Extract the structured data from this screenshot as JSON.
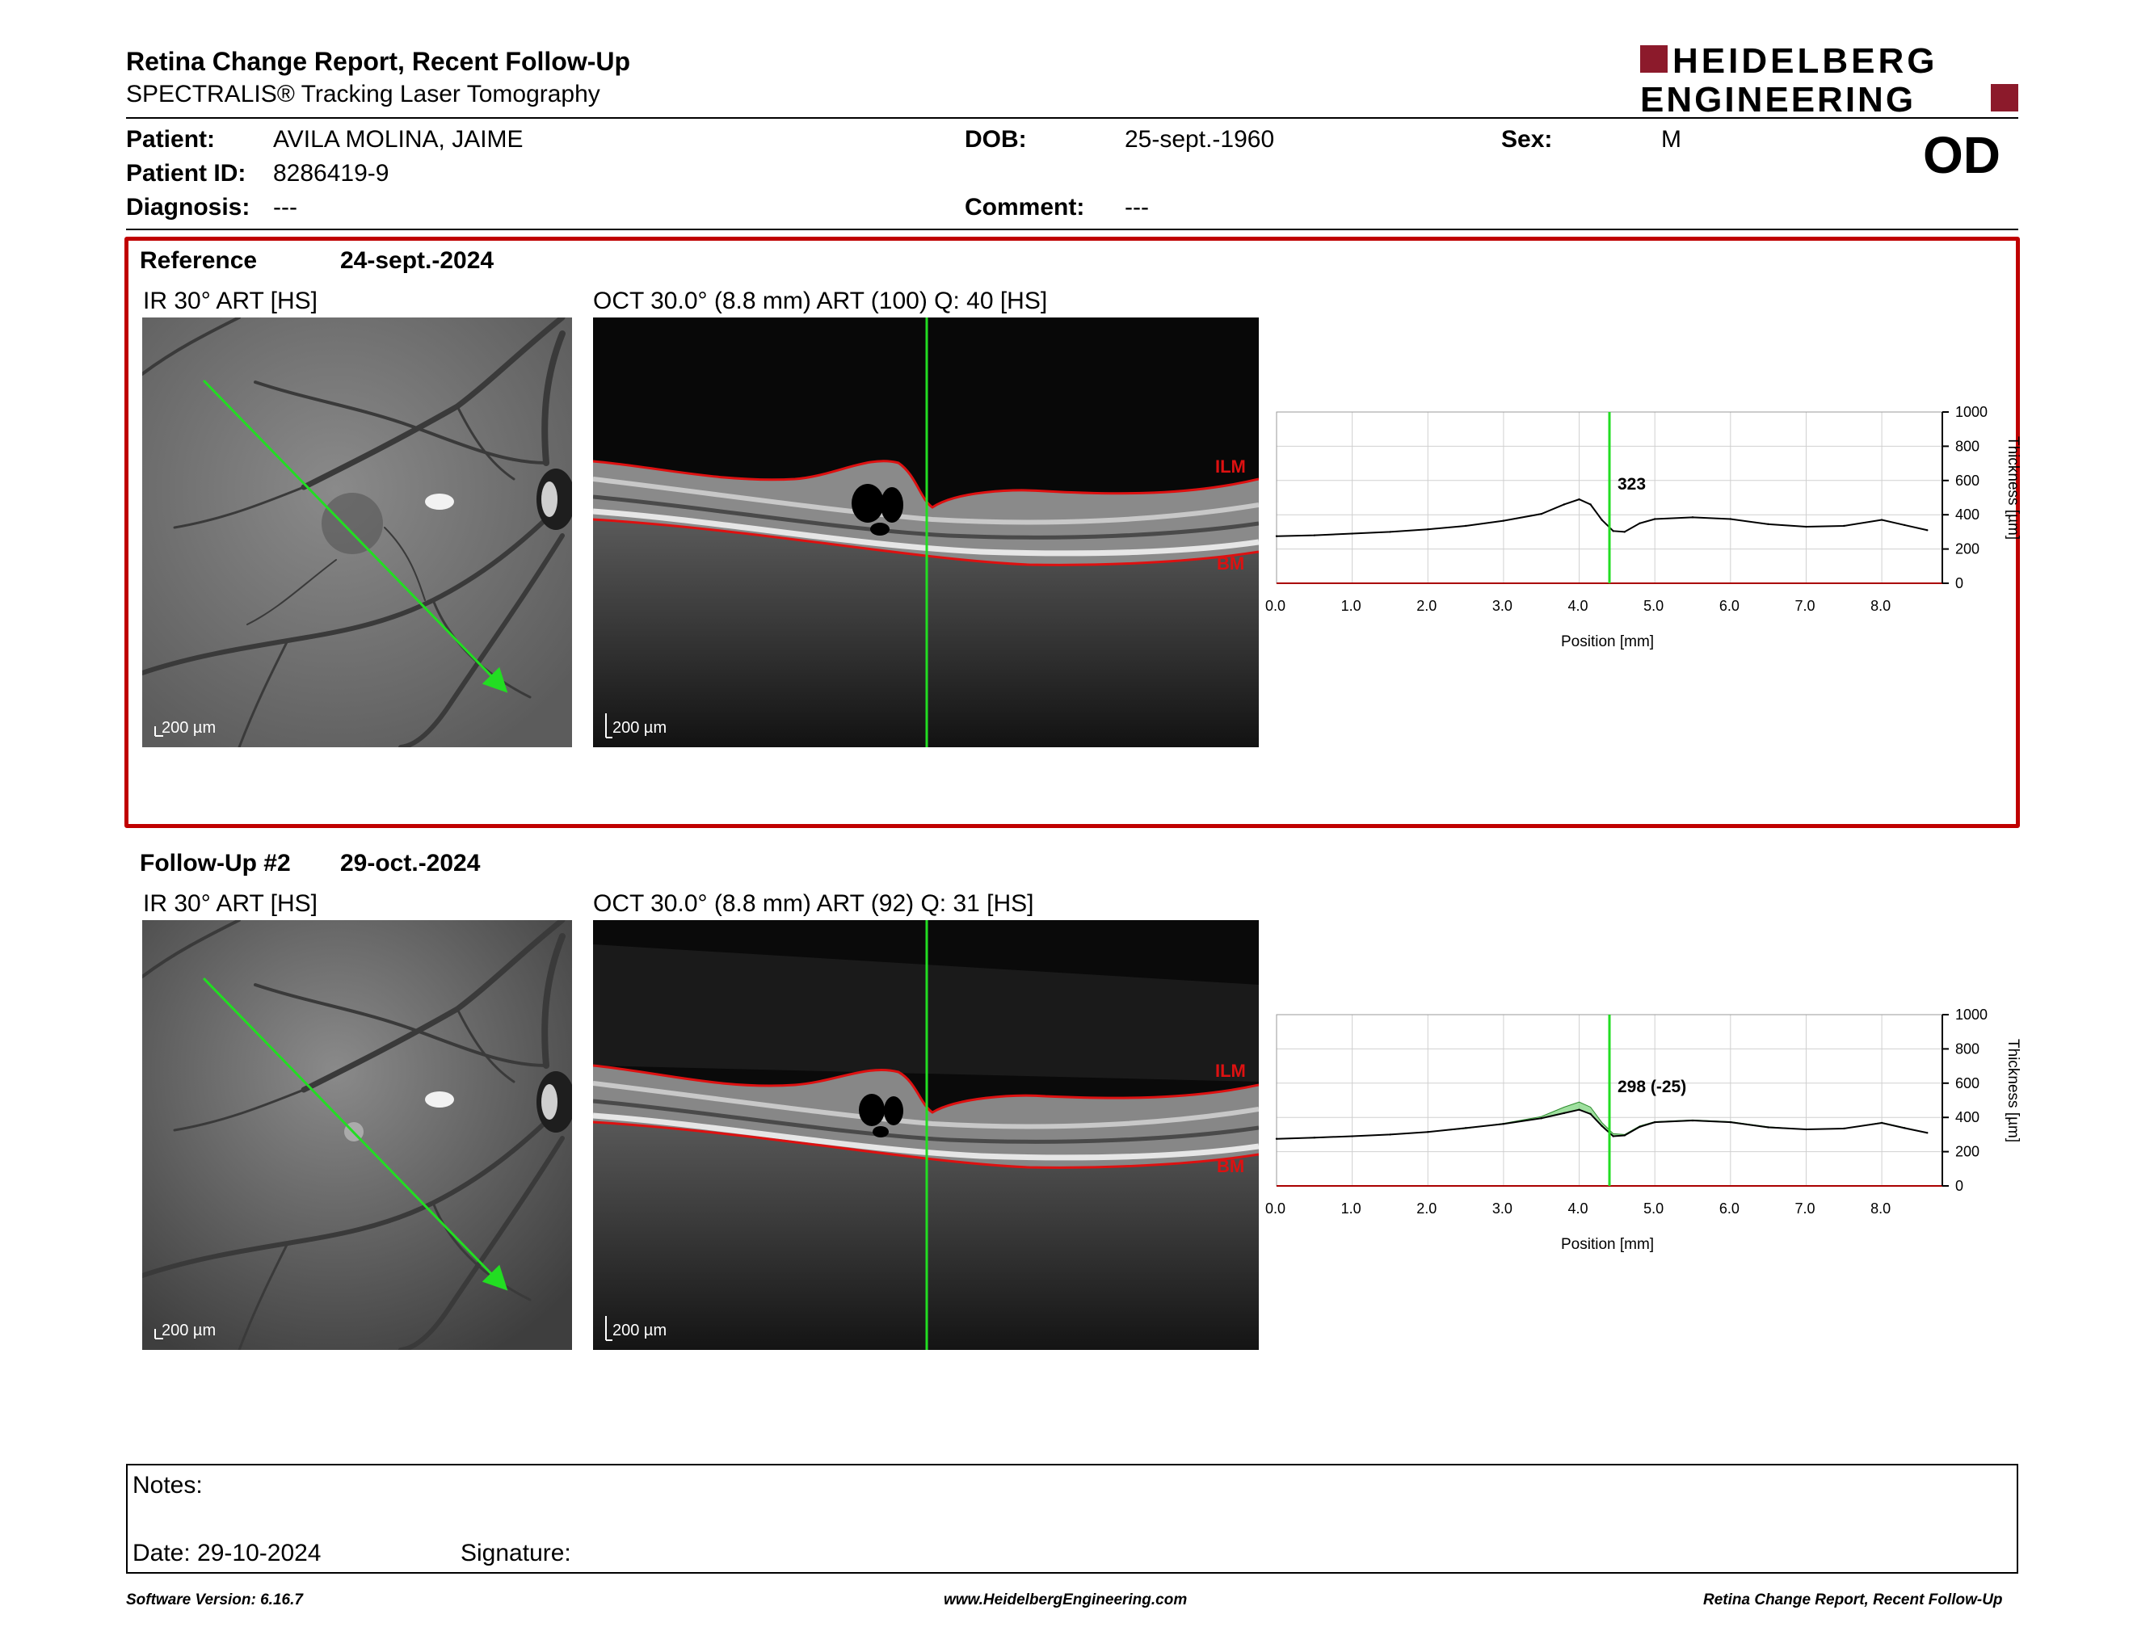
{
  "header": {
    "title": "Retina Change Report, Recent Follow-Up",
    "subtitle": "SPECTRALIS® Tracking Laser Tomography",
    "logo_line1": "HEIDELBERG",
    "logo_line2": "ENGINEERING",
    "brand_color": "#8c1a2b"
  },
  "patient": {
    "patient_label": "Patient:",
    "patient_value": "AVILA MOLINA, JAIME",
    "id_label": "Patient ID:",
    "id_value": "8286419-9",
    "diagnosis_label": "Diagnosis:",
    "diagnosis_value": "---",
    "dob_label": "DOB:",
    "dob_value": "25-sept.-1960",
    "comment_label": "Comment:",
    "comment_value": "---",
    "sex_label": "Sex:",
    "sex_value": "M",
    "eye": "OD"
  },
  "sections": [
    {
      "name": "Reference",
      "date": "24-sept.-2024",
      "ir_title": "IR 30° ART [HS]",
      "oct_title": "OCT 30.0° (8.8 mm) ART (100) Q: 40 [HS]",
      "ir_scale": "200 µm",
      "oct_scale": "200 µm",
      "ilm_label": "ILM",
      "bm_label": "BM",
      "highlight_color": "#c00000"
    },
    {
      "name": "Follow-Up #2",
      "date": "29-oct.-2024",
      "ir_title": "IR 30° ART [HS]",
      "oct_title": "OCT 30.0° (8.8 mm) ART (92) Q: 31 [HS]",
      "ir_scale": "200 µm",
      "oct_scale": "200 µm",
      "ilm_label": "ILM",
      "bm_label": "BM"
    }
  ],
  "chart_data": [
    {
      "type": "line",
      "xlabel": "Position [mm]",
      "ylabel": "Thickness [µm]",
      "xlim": [
        0,
        8.8
      ],
      "ylim": [
        0,
        1000
      ],
      "xticks": [
        "0.0",
        "1.0",
        "2.0",
        "3.0",
        "4.0",
        "5.0",
        "6.0",
        "7.0",
        "8.0"
      ],
      "yticks": [
        "0",
        "200",
        "400",
        "600",
        "800",
        "1000"
      ],
      "marker_x": 4.4,
      "marker_label": "323",
      "series": [
        {
          "x": [
            0.0,
            0.5,
            1.0,
            1.5,
            2.0,
            2.5,
            3.0,
            3.5,
            3.8,
            4.0,
            4.15,
            4.3,
            4.45,
            4.6,
            4.8,
            5.0,
            5.5,
            6.0,
            6.5,
            7.0,
            7.5,
            8.0,
            8.3,
            8.6
          ],
          "y": [
            275,
            280,
            290,
            300,
            315,
            335,
            365,
            405,
            460,
            490,
            460,
            370,
            305,
            300,
            350,
            375,
            385,
            375,
            345,
            330,
            335,
            370,
            340,
            310
          ]
        }
      ]
    },
    {
      "type": "line",
      "xlabel": "Position [mm]",
      "ylabel": "Thickness [µm]",
      "xlim": [
        0,
        8.8
      ],
      "ylim": [
        0,
        1000
      ],
      "xticks": [
        "0.0",
        "1.0",
        "2.0",
        "3.0",
        "4.0",
        "5.0",
        "6.0",
        "7.0",
        "8.0"
      ],
      "yticks": [
        "0",
        "200",
        "400",
        "600",
        "800",
        "1000"
      ],
      "marker_x": 4.4,
      "marker_label": "298 (-25)",
      "series": [
        {
          "x": [
            0.0,
            0.5,
            1.0,
            1.5,
            2.0,
            2.5,
            3.0,
            3.5,
            3.8,
            4.0,
            4.15,
            4.3,
            4.45,
            4.6,
            4.8,
            5.0,
            5.5,
            6.0,
            6.5,
            7.0,
            7.5,
            8.0,
            8.3,
            8.6
          ],
          "y": [
            275,
            282,
            290,
            300,
            315,
            338,
            362,
            395,
            425,
            445,
            420,
            350,
            290,
            295,
            345,
            372,
            382,
            372,
            342,
            330,
            335,
            368,
            338,
            310
          ]
        }
      ],
      "reference_series": [
        {
          "x": [
            0.0,
            0.5,
            1.0,
            1.5,
            2.0,
            2.5,
            3.0,
            3.5,
            3.8,
            4.0,
            4.15,
            4.3,
            4.45,
            4.6,
            4.8,
            5.0,
            5.5,
            6.0,
            6.5,
            7.0,
            7.5,
            8.0,
            8.3,
            8.6
          ],
          "y": [
            275,
            280,
            290,
            300,
            315,
            335,
            365,
            405,
            460,
            490,
            460,
            370,
            305,
            300,
            350,
            375,
            385,
            375,
            345,
            330,
            335,
            370,
            340,
            310
          ]
        }
      ],
      "change_fill_color": "#7fd67f"
    }
  ],
  "notes": {
    "notes_label": "Notes:",
    "date_label": "Date: 29-10-2024",
    "signature_label": "Signature:"
  },
  "footer": {
    "software": "Software Version: 6.16.7",
    "website": "www.HeidelbergEngineering.com",
    "report_name": "Retina Change Report, Recent Follow-Up"
  }
}
